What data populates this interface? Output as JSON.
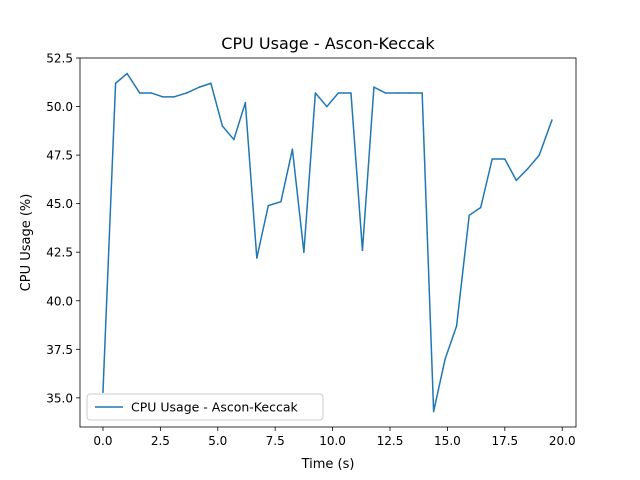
{
  "chart_data": {
    "type": "line",
    "title": "CPU Usage - Ascon-Keccak",
    "xlabel": "Time (s)",
    "ylabel": "CPU Usage (%)",
    "xlim": [
      -1.0,
      20.6
    ],
    "ylim": [
      33.5,
      52.5
    ],
    "xticks": [
      0.0,
      2.5,
      5.0,
      7.5,
      10.0,
      12.5,
      15.0,
      17.5,
      20.0
    ],
    "xtick_labels": [
      "0.0",
      "2.5",
      "5.0",
      "7.5",
      "10.0",
      "12.5",
      "15.0",
      "17.5",
      "20.0"
    ],
    "yticks": [
      35.0,
      37.5,
      40.0,
      42.5,
      45.0,
      47.5,
      50.0,
      52.5
    ],
    "ytick_labels": [
      "35.0",
      "37.5",
      "40.0",
      "42.5",
      "45.0",
      "47.5",
      "50.0",
      "52.5"
    ],
    "grid": false,
    "legend": "lower-left",
    "series": [
      {
        "name": "CPU Usage - Ascon-Keccak",
        "color": "#1f77b4",
        "x": [
          0.0,
          0.55,
          1.05,
          1.6,
          2.1,
          2.6,
          3.1,
          3.65,
          4.2,
          4.7,
          5.2,
          5.7,
          6.2,
          6.7,
          7.2,
          7.75,
          8.25,
          8.75,
          9.25,
          9.75,
          10.25,
          10.8,
          11.3,
          11.8,
          12.3,
          12.85,
          13.35,
          13.9,
          14.4,
          14.9,
          15.4,
          15.95,
          16.45,
          16.95,
          17.5,
          18.0,
          18.5,
          19.0,
          19.55
        ],
        "y": [
          35.3,
          51.2,
          51.7,
          50.7,
          50.7,
          50.5,
          50.5,
          50.7,
          51.0,
          51.2,
          49.0,
          48.3,
          50.2,
          42.2,
          44.9,
          45.1,
          47.8,
          42.5,
          50.7,
          50.0,
          50.7,
          50.7,
          42.6,
          51.0,
          50.7,
          50.7,
          50.7,
          50.7,
          34.3,
          37.0,
          38.7,
          44.4,
          44.8,
          47.3,
          47.3,
          46.2,
          46.8,
          47.5,
          49.3
        ]
      }
    ]
  }
}
